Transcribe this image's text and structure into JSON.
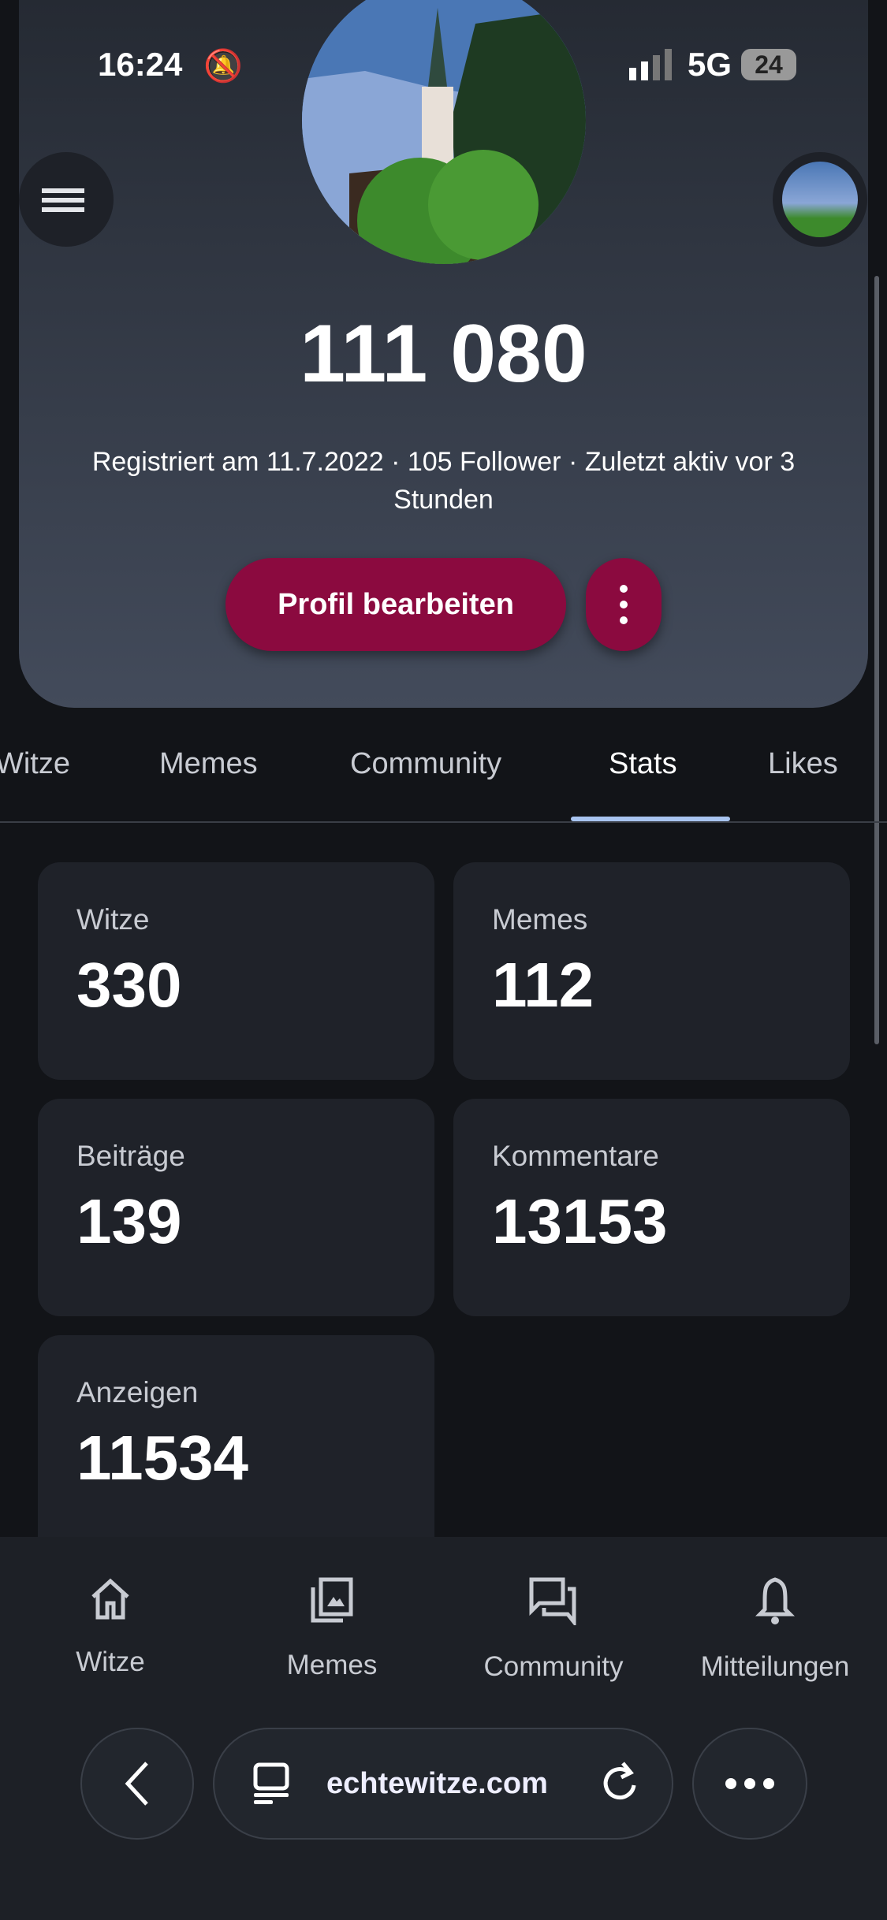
{
  "status_bar": {
    "time": "16:24",
    "network": "5G",
    "battery": "24"
  },
  "profile": {
    "points": "111 080",
    "meta": "Registriert am 11.7.2022 · 105 Follower · Zuletzt aktiv vor 3 Stunden",
    "edit_label": "Profil bearbeiten"
  },
  "tabs": [
    {
      "label": "Witze"
    },
    {
      "label": "Memes"
    },
    {
      "label": "Community"
    },
    {
      "label": "Stats",
      "active": true
    },
    {
      "label": "Likes"
    }
  ],
  "stats": [
    {
      "label": "Witze",
      "value": "330"
    },
    {
      "label": "Memes",
      "value": "112"
    },
    {
      "label": "Beiträge",
      "value": "139"
    },
    {
      "label": "Kommentare",
      "value": "13153"
    },
    {
      "label": "Anzeigen",
      "value": "11534"
    }
  ],
  "bottom_nav": [
    {
      "label": "Witze",
      "icon": "home-icon"
    },
    {
      "label": "Memes",
      "icon": "image-gallery-icon"
    },
    {
      "label": "Community",
      "icon": "chat-bubbles-icon"
    },
    {
      "label": "Mitteilungen",
      "icon": "bell-icon"
    }
  ],
  "browser": {
    "url": "echtewitze.com"
  },
  "colors": {
    "accent": "#8b0a3f",
    "tab_indicator": "#a8c4f0",
    "background": "#121418",
    "card": "#1f2229"
  }
}
